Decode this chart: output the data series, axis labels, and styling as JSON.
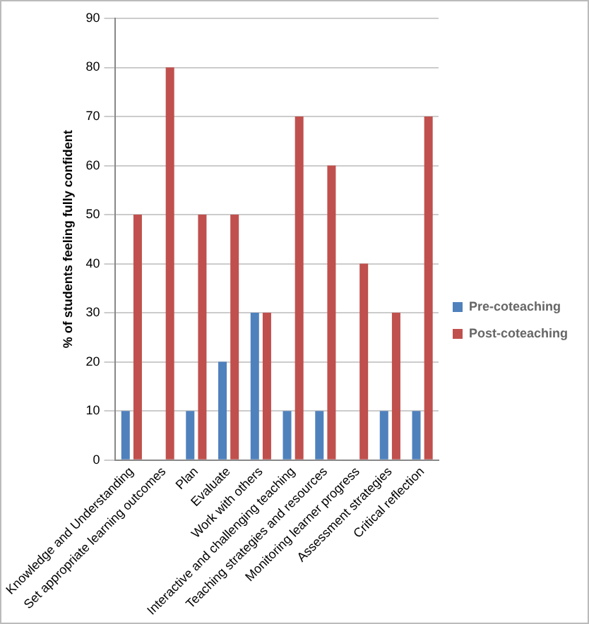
{
  "chart_data": {
    "type": "bar",
    "ylabel": "% of students feeling fully confident",
    "categories": [
      "Knowledge and Understanding",
      "Set appropriate learning outcomes",
      "Plan",
      "Evaluate",
      "Work with others",
      "Interactive and challenging teaching",
      "Teaching strategies and resources",
      "Monitoring learner progress",
      "Assessment strategies",
      "Critical reflection"
    ],
    "series": [
      {
        "name": "Pre-coteaching",
        "color": "#4f81bd",
        "values": [
          10,
          0,
          10,
          20,
          30,
          10,
          10,
          0,
          10,
          10
        ]
      },
      {
        "name": "Post-coteaching",
        "color": "#c0504d",
        "values": [
          50,
          80,
          50,
          50,
          30,
          70,
          60,
          40,
          30,
          70
        ]
      }
    ],
    "ylim": [
      0,
      90
    ],
    "yticks": [
      0,
      10,
      20,
      30,
      40,
      50,
      60,
      70,
      80,
      90
    ],
    "grid": "y",
    "legend": "right"
  }
}
